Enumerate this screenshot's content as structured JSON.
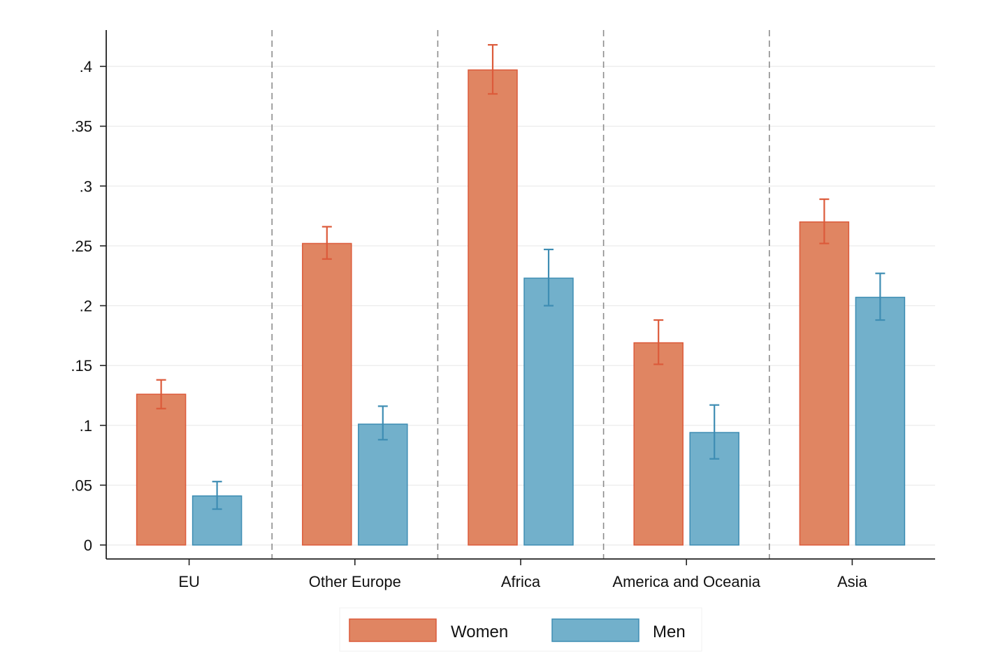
{
  "chart_data": {
    "type": "bar",
    "title": "",
    "xlabel": "",
    "ylabel": "",
    "categories": [
      "EU",
      "Other Europe",
      "Africa",
      "America and Oceania",
      "Asia"
    ],
    "series": [
      {
        "name": "Women",
        "color": "#E08562",
        "edge_color": "#DC5A3A",
        "values": [
          0.126,
          0.252,
          0.397,
          0.169,
          0.27
        ],
        "ci_low": [
          0.114,
          0.239,
          0.377,
          0.151,
          0.252
        ],
        "ci_high": [
          0.138,
          0.266,
          0.418,
          0.188,
          0.289
        ]
      },
      {
        "name": "Men",
        "color": "#72B0CB",
        "edge_color": "#3E8DB3",
        "values": [
          0.041,
          0.101,
          0.223,
          0.094,
          0.207
        ],
        "ci_low": [
          0.03,
          0.088,
          0.2,
          0.072,
          0.188
        ],
        "ci_high": [
          0.053,
          0.116,
          0.247,
          0.117,
          0.227
        ]
      }
    ],
    "y_ticks": [
      0,
      0.05,
      0.1,
      0.15,
      0.2,
      0.25,
      0.3,
      0.35,
      0.4
    ],
    "y_tick_labels": [
      "0",
      ".05",
      ".1",
      ".15",
      ".2",
      ".25",
      ".3",
      ".35",
      ".4"
    ],
    "ylim": [
      -0.012,
      0.43
    ],
    "grid": true,
    "group_separators": "dashed",
    "legend": {
      "position": "bottom-center",
      "entries": [
        "Women",
        "Men"
      ]
    }
  }
}
